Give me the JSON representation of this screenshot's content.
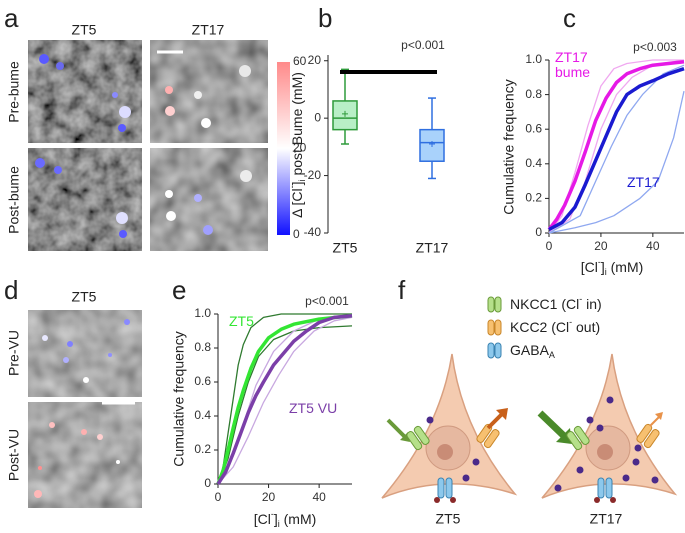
{
  "panel_labels": [
    "a",
    "b",
    "c",
    "d",
    "e",
    "f"
  ],
  "panel_a": {
    "columns": [
      "ZT5",
      "ZT17"
    ],
    "rows": [
      "Pre-bume",
      "Post-bume"
    ],
    "colorbar": {
      "ticks": [
        0,
        20,
        60
      ],
      "colors": [
        "#1010ff",
        "#ffffff",
        "#ff8a8a"
      ]
    }
  },
  "panel_d": {
    "column": "ZT5",
    "rows": [
      "Pre-VU",
      "Post-VU"
    ]
  },
  "panel_f": {
    "legend": [
      [
        "NKCC1 (Cl",
        "-",
        " in)"
      ],
      [
        "KCC2 (Cl",
        "-",
        " out)"
      ],
      [
        "GABA",
        "A"
      ]
    ],
    "cells": [
      "ZT5",
      "ZT17"
    ]
  },
  "chart_data": [
    {
      "type": "box",
      "ylabel": [
        "Δ [Cl",
        "-",
        "]",
        "i",
        " post Bume (mM)"
      ],
      "categories": [
        "ZT5",
        "ZT17"
      ],
      "min": [
        -9,
        -21
      ],
      "q1": [
        -4,
        -15
      ],
      "median": [
        0,
        -8.5
      ],
      "q3": [
        6,
        -4
      ],
      "max": [
        17,
        7
      ],
      "mean": [
        1.5,
        -9
      ],
      "colors": [
        "#2e9a3a",
        "#2f6fe0"
      ],
      "fills": [
        "#b8efc6",
        "#a9d2fb"
      ],
      "ylim": [
        -40,
        22
      ],
      "yticks": [
        -40,
        -20,
        0,
        20
      ],
      "annotation": "p<0.001"
    },
    {
      "type": "line",
      "ylabel": "Cumulative frequency",
      "xlabel": [
        "[Cl",
        "-",
        "]",
        "i",
        " (mM)"
      ],
      "xlim": [
        0,
        52
      ],
      "xticks": [
        0,
        20,
        40
      ],
      "ylim": [
        0,
        1
      ],
      "yticks": [
        0,
        0.2,
        0.4,
        0.6,
        0.8,
        {
          "value": 1,
          "label": "1.0"
        }
      ],
      "annotation": "p<0.003",
      "series": [
        {
          "color": "#f0a8f0",
          "x": [
            0,
            5,
            10,
            15,
            20,
            25,
            30,
            40,
            52
          ],
          "values": [
            0,
            0.1,
            0.35,
            0.62,
            0.85,
            0.95,
            0.98,
            1,
            1
          ]
        },
        {
          "color": "#f0a8f0",
          "x": [
            0,
            8,
            14,
            20,
            26,
            32,
            40,
            52
          ],
          "values": [
            0,
            0.08,
            0.3,
            0.6,
            0.8,
            0.9,
            0.97,
            1
          ]
        },
        {
          "color": "#8fa8f0",
          "x": [
            0,
            10,
            18,
            25,
            30,
            35,
            42,
            48,
            52
          ],
          "values": [
            0,
            0.03,
            0.06,
            0.1,
            0.15,
            0.2,
            0.3,
            0.55,
            0.82
          ]
        },
        {
          "color": "#8fa8f0",
          "x": [
            0,
            12,
            18,
            24,
            30,
            36,
            44,
            52
          ],
          "values": [
            0,
            0.1,
            0.3,
            0.5,
            0.68,
            0.8,
            0.92,
            0.97
          ]
        },
        {
          "name": "ZT17 bume",
          "color": "#e619e6",
          "x": [
            0,
            3,
            6,
            10,
            14,
            18,
            22,
            26,
            30,
            35,
            40,
            46,
            52
          ],
          "values": [
            0.02,
            0.08,
            0.16,
            0.3,
            0.47,
            0.65,
            0.78,
            0.87,
            0.92,
            0.95,
            0.97,
            0.98,
            0.99
          ]
        },
        {
          "name": "ZT17",
          "color": "#1a1ad0",
          "x": [
            0,
            5,
            10,
            14,
            18,
            22,
            26,
            30,
            35,
            40,
            46,
            52
          ],
          "values": [
            0.02,
            0.06,
            0.15,
            0.28,
            0.42,
            0.56,
            0.7,
            0.8,
            0.85,
            0.88,
            0.92,
            0.95
          ]
        }
      ]
    },
    {
      "type": "line",
      "ylabel": "Cumulative frequency",
      "xlabel": [
        "[Cl",
        "-",
        "]",
        "i",
        " (mM)"
      ],
      "xlim": [
        0,
        53
      ],
      "xticks": [
        0,
        20,
        40
      ],
      "ylim": [
        0,
        1
      ],
      "yticks": [
        0,
        0.2,
        0.4,
        0.6,
        0.8,
        {
          "value": 1,
          "label": "1.0"
        }
      ],
      "annotation": "p<0.001",
      "series": [
        {
          "color": "#2f7a2f",
          "x": [
            0,
            2,
            4,
            6,
            8,
            10,
            13,
            18,
            25,
            53
          ],
          "values": [
            0,
            0.1,
            0.3,
            0.5,
            0.7,
            0.82,
            0.92,
            0.98,
            1,
            1
          ]
        },
        {
          "color": "#2f7a2f",
          "x": [
            0,
            4,
            8,
            12,
            16,
            22,
            30,
            40,
            53
          ],
          "values": [
            0,
            0.15,
            0.4,
            0.6,
            0.75,
            0.85,
            0.9,
            0.92,
            0.93
          ]
        },
        {
          "color": "#c8a8e0",
          "x": [
            0,
            6,
            12,
            18,
            24,
            30,
            38,
            46,
            53
          ],
          "values": [
            0,
            0.1,
            0.28,
            0.48,
            0.64,
            0.78,
            0.9,
            0.96,
            0.98
          ]
        },
        {
          "color": "#c8a8e0",
          "x": [
            0,
            5,
            10,
            15,
            22,
            30,
            40,
            53
          ],
          "values": [
            0,
            0.15,
            0.35,
            0.58,
            0.78,
            0.9,
            0.97,
            0.99
          ]
        },
        {
          "name": "ZT5",
          "color": "#33e633",
          "x": [
            0,
            2,
            4,
            6,
            8,
            10,
            13,
            16,
            20,
            25,
            30,
            40,
            53
          ],
          "values": [
            0,
            0.08,
            0.2,
            0.33,
            0.45,
            0.55,
            0.68,
            0.78,
            0.86,
            0.91,
            0.94,
            0.97,
            0.99
          ]
        },
        {
          "name": "ZT5 VU",
          "color": "#7b3fa8",
          "x": [
            0,
            3,
            6,
            9,
            12,
            15,
            18,
            22,
            26,
            30,
            35,
            40,
            46,
            53
          ],
          "values": [
            0,
            0.07,
            0.18,
            0.3,
            0.42,
            0.52,
            0.6,
            0.7,
            0.77,
            0.84,
            0.9,
            0.95,
            0.98,
            0.99
          ]
        }
      ]
    }
  ]
}
